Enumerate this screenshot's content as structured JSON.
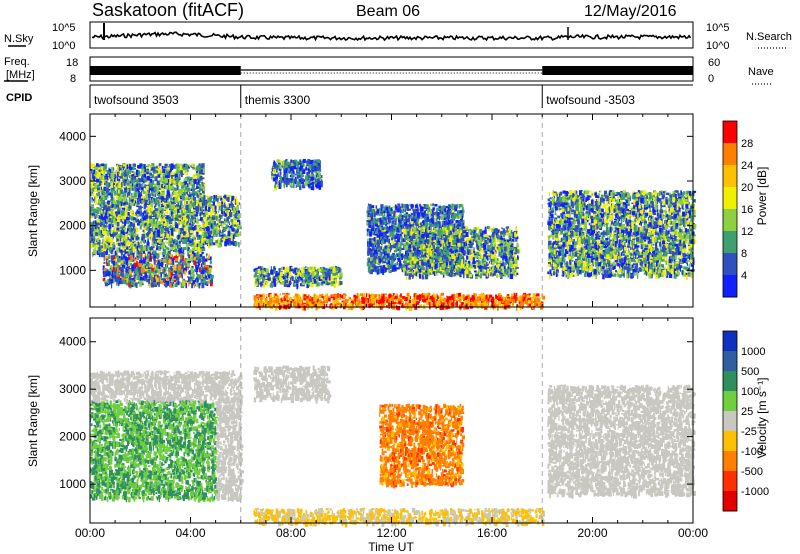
{
  "header": {
    "station": "Saskatoon (fitACF)",
    "beam": "Beam 06",
    "date": "12/May/2016"
  },
  "summary_panels": {
    "nsky_label": "N.Sky",
    "nsearch_label": "N.Search",
    "noise_ticks": [
      "10^5",
      "10^0"
    ],
    "freq_label_1": "Freq.",
    "freq_label_2": "[MHz]",
    "freq_ticks": [
      "18",
      "8"
    ],
    "nave_label": "Nave",
    "nave_ticks": [
      "60",
      "0"
    ],
    "cpid_label": "CPID",
    "cpid_segments": [
      {
        "label": "twofsound 3503",
        "start_hour": 0,
        "end_hour": 6
      },
      {
        "label": "themis 3300",
        "start_hour": 6,
        "end_hour": 18
      },
      {
        "label": "twofsound -3503",
        "start_hour": 18,
        "end_hour": 24
      }
    ]
  },
  "time_axis": {
    "label": "Time UT",
    "ticks": [
      "00:00",
      "04:00",
      "08:00",
      "12:00",
      "16:00",
      "20:00",
      "00:00"
    ]
  },
  "chart_data": [
    {
      "type": "heatmap",
      "name": "power",
      "ylabel": "Slant Range [km]",
      "xlim_hours": [
        0,
        24
      ],
      "ylim": [
        180,
        4500
      ],
      "yticks": [
        1000,
        2000,
        3000,
        4000
      ],
      "colorbar_label": "Power [dB]",
      "colorbar_ticks": [
        "28",
        "24",
        "20",
        "16",
        "12",
        "8",
        "4"
      ],
      "colorbar_colors": [
        "#ff0000",
        "#ff7f00",
        "#ffc000",
        "#f0f000",
        "#8fd040",
        "#3f9f6f",
        "#3050c0",
        "#1020ff"
      ],
      "scatter_regions": [
        {
          "hours": [
            0.0,
            4.5
          ],
          "range_km": [
            1400,
            3400
          ]
        },
        {
          "hours": [
            0.5,
            4.8
          ],
          "range_km": [
            700,
            1400
          ]
        },
        {
          "hours": [
            4.5,
            5.9
          ],
          "range_km": [
            1600,
            2700
          ]
        },
        {
          "hours": [
            6.5,
            10.0
          ],
          "range_km": [
            700,
            1100
          ]
        },
        {
          "hours": [
            6.5,
            18.0
          ],
          "range_km": [
            200,
            500
          ]
        },
        {
          "hours": [
            7.2,
            9.2
          ],
          "range_km": [
            2900,
            3500
          ]
        },
        {
          "hours": [
            11.0,
            14.8
          ],
          "range_km": [
            1000,
            2500
          ]
        },
        {
          "hours": [
            12.5,
            17.0
          ],
          "range_km": [
            900,
            2000
          ]
        },
        {
          "hours": [
            18.2,
            24.0
          ],
          "range_km": [
            900,
            2800
          ]
        }
      ]
    },
    {
      "type": "heatmap",
      "name": "velocity",
      "ylabel": "Slant Range [km]",
      "xlim_hours": [
        0,
        24
      ],
      "ylim": [
        180,
        4500
      ],
      "yticks": [
        1000,
        2000,
        3000,
        4000
      ],
      "colorbar_label": "Velocity [m s⁻¹]",
      "colorbar_ticks": [
        "1000",
        "500",
        "100",
        "25",
        "-25",
        "-100",
        "-500",
        "-1000"
      ],
      "colorbar_colors": [
        "#1030c0",
        "#2f5fa0",
        "#2f8f5f",
        "#6fcf3f",
        "#c8c8c0",
        "#ffc000",
        "#ff7f00",
        "#ff3000",
        "#e00000"
      ],
      "scatter_regions": [
        {
          "hours": [
            0.0,
            6.0
          ],
          "range_km": [
            700,
            3400
          ]
        },
        {
          "hours": [
            6.5,
            9.5
          ],
          "range_km": [
            2800,
            3500
          ]
        },
        {
          "hours": [
            11.5,
            14.8
          ],
          "range_km": [
            1000,
            2700
          ]
        },
        {
          "hours": [
            6.5,
            18.0
          ],
          "range_km": [
            200,
            500
          ]
        },
        {
          "hours": [
            18.2,
            24.0
          ],
          "range_km": [
            800,
            3100
          ]
        }
      ]
    }
  ]
}
